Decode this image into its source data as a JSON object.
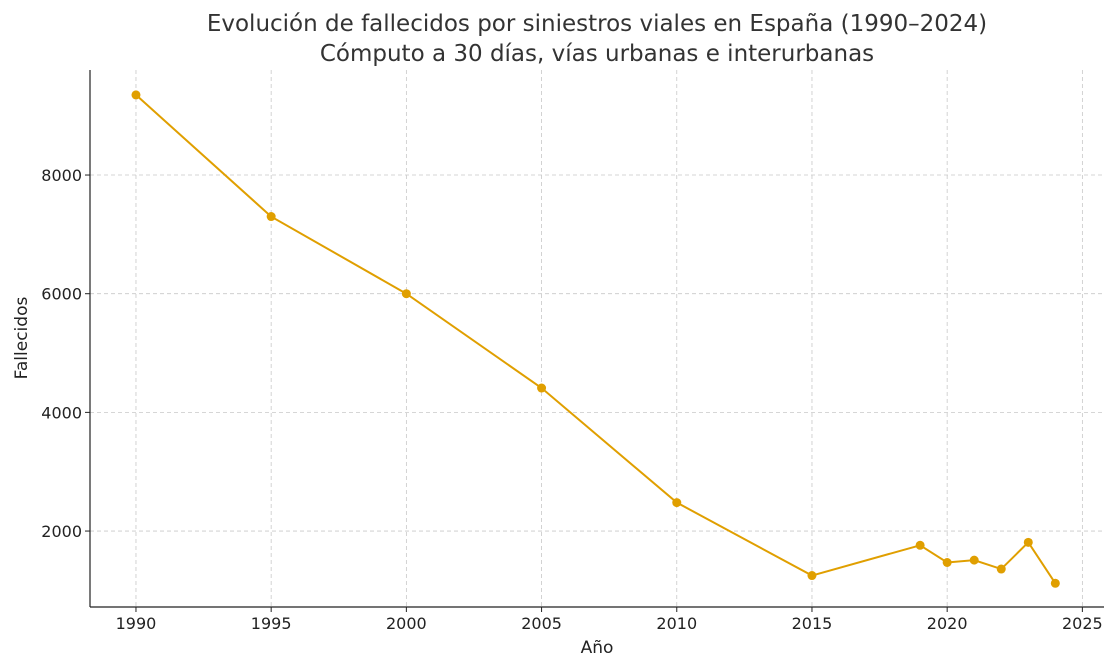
{
  "chart_data": {
    "type": "line",
    "title": "Evolución de fallecidos por siniestros viales en España (1990–2024)",
    "subtitle": "Cómputo a 30 días, vías urbanas e interurbanas",
    "xlabel": "Año",
    "ylabel": "Fallecidos",
    "x": [
      1990,
      1995,
      2000,
      2005,
      2010,
      2015,
      2019,
      2020,
      2021,
      2022,
      2023,
      2024
    ],
    "series": [
      {
        "name": "Fallecidos",
        "values": [
          9350,
          7300,
          6000,
          4410,
          2480,
          1250,
          1760,
          1470,
          1510,
          1360,
          1810,
          1120
        ]
      }
    ],
    "xticks": [
      1990,
      1995,
      2000,
      2005,
      2010,
      2015,
      2020,
      2025
    ],
    "yticks": [
      2000,
      4000,
      6000,
      8000
    ],
    "xlim": [
      1988.3,
      2025.8
    ],
    "ylim": [
      720,
      9770
    ],
    "grid": true,
    "color": "#E09F00"
  }
}
